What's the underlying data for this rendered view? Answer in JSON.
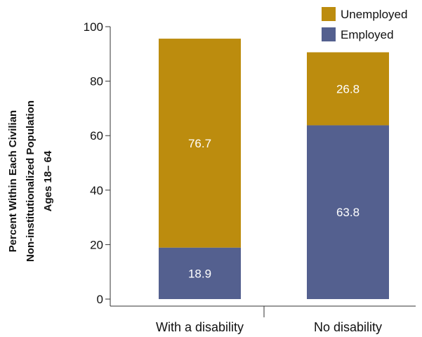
{
  "chart_data": {
    "type": "bar",
    "stacked": true,
    "categories": [
      "With a disability",
      "No disability"
    ],
    "series": [
      {
        "name": "Employed",
        "values": [
          18.9,
          63.8
        ],
        "color": "#54608f"
      },
      {
        "name": "Unemployed",
        "values": [
          76.7,
          26.8
        ],
        "color": "#bc8c0e"
      }
    ],
    "data_labels": [
      [
        "18.9",
        "76.7"
      ],
      [
        "63.8",
        "26.8"
      ]
    ],
    "ylabel_lines": [
      "Percent Within Each Civilian",
      "Non-institutionalized Population",
      "Ages 18– 64"
    ],
    "ylim": [
      0,
      100
    ],
    "yticks": [
      0,
      20,
      40,
      60,
      80,
      100
    ],
    "grid": false,
    "legend": {
      "position": "top-right",
      "entries": [
        {
          "label": "Unemployed",
          "color": "#bc8c0e"
        },
        {
          "label": "Employed",
          "color": "#54608f"
        }
      ]
    }
  }
}
